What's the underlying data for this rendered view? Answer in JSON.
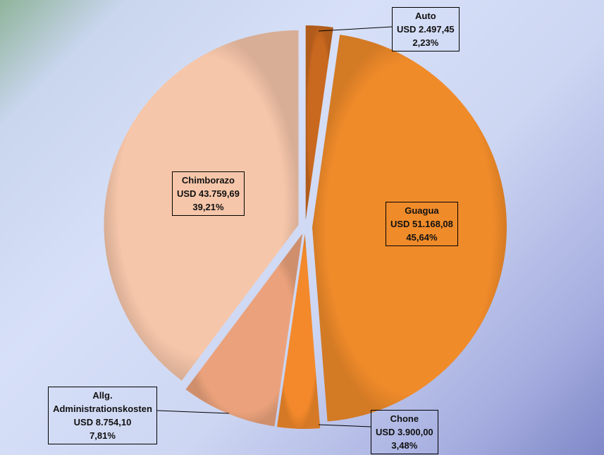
{
  "chart_data": {
    "type": "pie",
    "categories": [
      "Auto",
      "Guagua",
      "Chone",
      "Allg. Administrationskosten",
      "Chimborazo"
    ],
    "values": [
      2497.45,
      51168.08,
      3900.0,
      8754.1,
      43759.69
    ],
    "value_labels": [
      "USD 2.497,45",
      "USD 51.168,08",
      "USD 3.900,00",
      "USD 8.754,10",
      "USD 43.759,69"
    ],
    "percent_labels": [
      "2,23%",
      "45,64%",
      "3,48%",
      "7,81%",
      "39,21%"
    ],
    "colors": [
      "#c9681f",
      "#f08b2a",
      "#f3892b",
      "#eba27c",
      "#f6c6aa"
    ]
  }
}
